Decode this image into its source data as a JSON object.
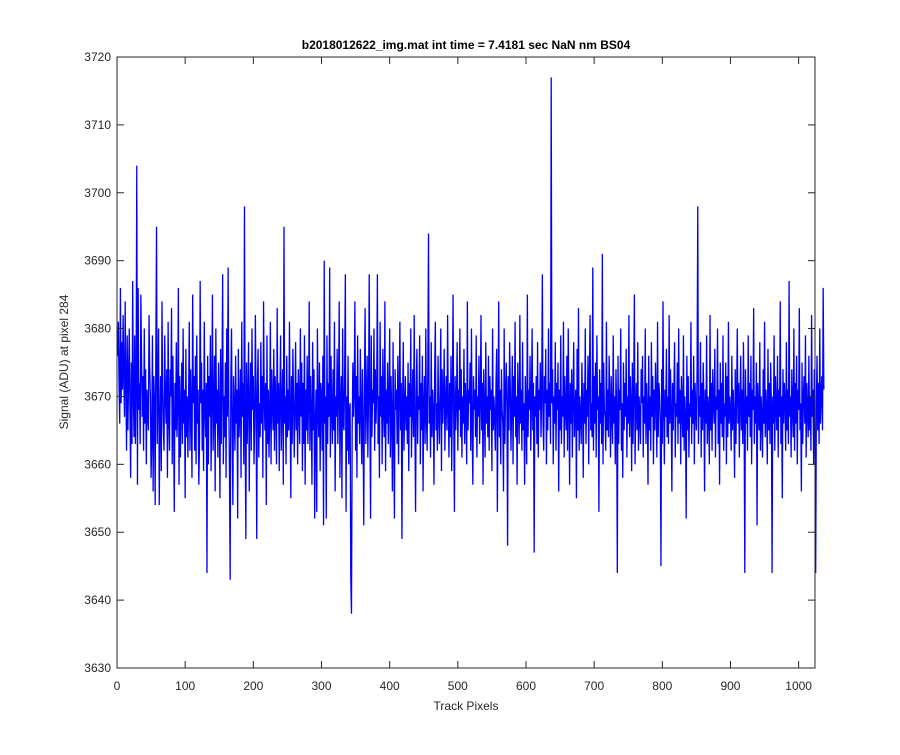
{
  "chart_data": {
    "type": "line",
    "title": "b2018012622_img.mat int time = 7.4181 sec  NaN nm BS04",
    "xlabel": "Track Pixels",
    "ylabel": "Signal (ADU) at pixel 284",
    "xlim": [
      0,
      1024
    ],
    "ylim": [
      3630,
      3720
    ],
    "x_ticks": [
      0,
      100,
      200,
      300,
      400,
      500,
      600,
      700,
      800,
      900,
      1000
    ],
    "y_ticks": [
      3630,
      3640,
      3650,
      3660,
      3670,
      3680,
      3690,
      3700,
      3710,
      3720
    ],
    "grid": false,
    "legend": "none",
    "series": [
      {
        "color": "#0000ff",
        "x_start": 1,
        "x_step": 1,
        "notable_points": [
          {
            "x": 28,
            "y": 3704
          },
          {
            "x": 58,
            "y": 3695
          },
          {
            "x": 132,
            "y": 3644
          },
          {
            "x": 166,
            "y": 3643
          },
          {
            "x": 187,
            "y": 3698
          },
          {
            "x": 247,
            "y": 3695
          },
          {
            "x": 345,
            "y": 3638
          },
          {
            "x": 490,
            "y": 3694
          },
          {
            "x": 603,
            "y": 3717
          },
          {
            "x": 699,
            "y": 3644
          },
          {
            "x": 773,
            "y": 3645
          },
          {
            "x": 838,
            "y": 3698
          },
          {
            "x": 899,
            "y": 3644
          },
          {
            "x": 1011,
            "y": 3644
          }
        ],
        "values": [
          3676,
          3681,
          3672,
          3666,
          3686,
          3669,
          3678,
          3671,
          3682,
          3673,
          3667,
          3684,
          3672,
          3662,
          3679,
          3665,
          3673,
          3680,
          3668,
          3658,
          3675,
          3663,
          3687,
          3670,
          3664,
          3679,
          3663,
          3671,
          3704,
          3657,
          3686,
          3668,
          3672,
          3663,
          3685,
          3676,
          3667,
          3673,
          3662,
          3680,
          3666,
          3674,
          3660,
          3671,
          3668,
          3665,
          3682,
          3674,
          3670,
          3658,
          3664,
          3679,
          3656,
          3673,
          3669,
          3654,
          3677,
          3695,
          3663,
          3671,
          3680,
          3654,
          3666,
          3673,
          3659,
          3684,
          3671,
          3665,
          3662,
          3679,
          3670,
          3666,
          3674,
          3658,
          3681,
          3667,
          3662,
          3674,
          3670,
          3683,
          3660,
          3676,
          3667,
          3653,
          3672,
          3665,
          3678,
          3664,
          3669,
          3686,
          3657,
          3673,
          3661,
          3668,
          3675,
          3663,
          3680,
          3666,
          3671,
          3655,
          3677,
          3664,
          3670,
          3661,
          3669,
          3681,
          3662,
          3674,
          3667,
          3658,
          3685,
          3669,
          3673,
          3662,
          3676,
          3660,
          3679,
          3666,
          3671,
          3657,
          3663,
          3687,
          3669,
          3675,
          3662,
          3671,
          3659,
          3681,
          3668,
          3664,
          3672,
          3644,
          3676,
          3660,
          3673,
          3667,
          3679,
          3659,
          3670,
          3685,
          3662,
          3668,
          3676,
          3656,
          3680,
          3666,
          3671,
          3661,
          3675,
          3668,
          3655,
          3677,
          3663,
          3672,
          3688,
          3660,
          3670,
          3664,
          3675,
          3658,
          3680,
          3667,
          3689,
          3669,
          3659,
          3643,
          3672,
          3680,
          3665,
          3654,
          3673,
          3668,
          3662,
          3676,
          3666,
          3671,
          3652,
          3677,
          3664,
          3668,
          3674,
          3658,
          3681,
          3667,
          3672,
          3660,
          3698,
          3665,
          3649,
          3675,
          3663,
          3670,
          3678,
          3656,
          3669,
          3675,
          3662,
          3680,
          3668,
          3673,
          3660,
          3666,
          3682,
          3670,
          3649,
          3672,
          3677,
          3661,
          3669,
          3664,
          3678,
          3666,
          3673,
          3658,
          3684,
          3670,
          3665,
          3672,
          3654,
          3679,
          3663,
          3671,
          3661,
          3667,
          3681,
          3660,
          3674,
          3669,
          3665,
          3677,
          3662,
          3673,
          3668,
          3660,
          3683,
          3666,
          3672,
          3659,
          3670,
          3679,
          3662,
          3669,
          3674,
          3657,
          3695,
          3666,
          3670,
          3660,
          3676,
          3664,
          3671,
          3665,
          3681,
          3668,
          3655,
          3673,
          3663,
          3677,
          3670,
          3661,
          3668,
          3678,
          3665,
          3672,
          3660,
          3674,
          3669,
          3663,
          3680,
          3667,
          3675,
          3659,
          3672,
          3663,
          3679,
          3657,
          3671,
          3665,
          3676,
          3663,
          3669,
          3684,
          3662,
          3673,
          3667,
          3657,
          3678,
          3665,
          3674,
          3652,
          3666,
          3671,
          3653,
          3680,
          3668,
          3664,
          3675,
          3659,
          3672,
          3670,
          3662,
          3676,
          3651,
          3690,
          3666,
          3670,
          3652,
          3679,
          3663,
          3672,
          3667,
          3689,
          3661,
          3676,
          3668,
          3663,
          3674,
          3665,
          3681,
          3656,
          3670,
          3667,
          3677,
          3663,
          3671,
          3684,
          3658,
          3669,
          3673,
          3655,
          3680,
          3666,
          3665,
          3674,
          3688,
          3653,
          3670,
          3662,
          3676,
          3660,
          3668,
          3669,
          3643,
          3638,
          3665,
          3675,
          3667,
          3671,
          3684,
          3662,
          3673,
          3658,
          3679,
          3666,
          3670,
          3663,
          3677,
          3668,
          3660,
          3674,
          3665,
          3651,
          3672,
          3683,
          3663,
          3669,
          3676,
          3661,
          3670,
          3688,
          3667,
          3652,
          3679,
          3664,
          3671,
          3669,
          3680,
          3662,
          3674,
          3666,
          3671,
          3688,
          3663,
          3670,
          3658,
          3681,
          3667,
          3673,
          3660,
          3677,
          3668,
          3664,
          3684,
          3659,
          3671,
          3666,
          3675,
          3663,
          3669,
          3680,
          3661,
          3673,
          3667,
          3656,
          3678,
          3664,
          3652,
          3674,
          3668,
          3671,
          3663,
          3676,
          3660,
          3670,
          3681,
          3665,
          3672,
          3649,
          3669,
          3678,
          3662,
          3668,
          3673,
          3665,
          3670,
          3663,
          3675,
          3659,
          3672,
          3667,
          3680,
          3661,
          3669,
          3674,
          3664,
          3682,
          3666,
          3653,
          3671,
          3677,
          3663,
          3670,
          3668,
          3679,
          3660,
          3672,
          3665,
          3676,
          3656,
          3669,
          3673,
          3663,
          3680,
          3667,
          3662,
          3675,
          3694,
          3666,
          3670,
          3661,
          3678,
          3664,
          3671,
          3668,
          3657,
          3673,
          3681,
          3665,
          3669,
          3662,
          3676,
          3667,
          3663,
          3671,
          3680,
          3659,
          3674,
          3666,
          3670,
          3677,
          3662,
          3669,
          3673,
          3665,
          3682,
          3668,
          3661,
          3672,
          3664,
          3676,
          3659,
          3670,
          3685,
          3667,
          3653,
          3673,
          3665,
          3669,
          3678,
          3662,
          3671,
          3668,
          3680,
          3664,
          3674,
          3661,
          3670,
          3666,
          3677,
          3663,
          3672,
          3668,
          3660,
          3684,
          3665,
          3671,
          3669,
          3675,
          3662,
          3680,
          3666,
          3657,
          3673,
          3668,
          3671,
          3664,
          3679,
          3661,
          3670,
          3667,
          3676,
          3663,
          3669,
          3682,
          3665,
          3672,
          3657,
          3674,
          3668,
          3661,
          3678,
          3666,
          3670,
          3664,
          3676,
          3662,
          3673,
          3668,
          3671,
          3659,
          3680,
          3665,
          3670,
          3667,
          3662,
          3672,
          3677,
          3653,
          3669,
          3684,
          3664,
          3671,
          3660,
          3674,
          3668,
          3666,
          3656,
          3680,
          3663,
          3670,
          3675,
          3669,
          3648,
          3673,
          3665,
          3678,
          3671,
          3662,
          3669,
          3676,
          3660,
          3673,
          3667,
          3681,
          3664,
          3670,
          3657,
          3675,
          3668,
          3663,
          3682,
          3666,
          3671,
          3662,
          3678,
          3665,
          3669,
          3657,
          3673,
          3667,
          3660,
          3685,
          3664,
          3671,
          3668,
          3676,
          3662,
          3669,
          3680,
          3665,
          3672,
          3647,
          3670,
          3667,
          3673,
          3663,
          3678,
          3661,
          3671,
          3668,
          3675,
          3664,
          3670,
          3688,
          3666,
          3662,
          3673,
          3669,
          3677,
          3660,
          3671,
          3665,
          3680,
          3667,
          3672,
          3663,
          3717,
          3669,
          3674,
          3660,
          3670,
          3666,
          3678,
          3662,
          3672,
          3668,
          3675,
          3656,
          3671,
          3665,
          3679,
          3663,
          3670,
          3667,
          3681,
          3661,
          3673,
          3668,
          3665,
          3676,
          3662,
          3680,
          3669,
          3657,
          3672,
          3666,
          3674,
          3661,
          3670,
          3678,
          3664,
          3668,
          3671,
          3655,
          3677,
          3665,
          3683,
          3662,
          3670,
          3667,
          3663,
          3675,
          3669,
          3658,
          3672,
          3666,
          3680,
          3663,
          3671,
          3667,
          3676,
          3660,
          3673,
          3682,
          3665,
          3669,
          3664,
          3689,
          3662,
          3673,
          3666,
          3675,
          3661,
          3679,
          3668,
          3670,
          3653,
          3674,
          3666,
          3672,
          3663,
          3691,
          3660,
          3675,
          3668,
          3667,
          3662,
          3681,
          3665,
          3671,
          3664,
          3676,
          3669,
          3661,
          3673,
          3667,
          3663,
          3679,
          3666,
          3670,
          3660,
          3674,
          3668,
          3644,
          3676,
          3663,
          3671,
          3668,
          3680,
          3662,
          3669,
          3658,
          3675,
          3665,
          3672,
          3667,
          3677,
          3661,
          3670,
          3666,
          3682,
          3664,
          3673,
          3669,
          3659,
          3675,
          3663,
          3671,
          3685,
          3660,
          3668,
          3672,
          3665,
          3678,
          3662,
          3670,
          3667,
          3663,
          3674,
          3669,
          3676,
          3661,
          3670,
          3666,
          3680,
          3663,
          3672,
          3668,
          3657,
          3676,
          3665,
          3670,
          3662,
          3678,
          3667,
          3673,
          3660,
          3671,
          3665,
          3675,
          3669,
          3661,
          3681,
          3664,
          3672,
          3670,
          3666,
          3645,
          3674,
          3663,
          3684,
          3668,
          3660,
          3671,
          3667,
          3677,
          3664,
          3670,
          3663,
          3682,
          3666,
          3674,
          3668,
          3656,
          3672,
          3665,
          3671,
          3678,
          3661,
          3669,
          3667,
          3675,
          3663,
          3680,
          3666,
          3671,
          3660,
          3673,
          3668,
          3664,
          3679,
          3662,
          3670,
          3667,
          3652,
          3676,
          3665,
          3673,
          3661,
          3669,
          3667,
          3681,
          3663,
          3671,
          3666,
          3676,
          3660,
          3672,
          3668,
          3665,
          3674,
          3698,
          3663,
          3670,
          3667,
          3678,
          3661,
          3672,
          3665,
          3675,
          3669,
          3656,
          3671,
          3666,
          3679,
          3663,
          3670,
          3668,
          3660,
          3682,
          3665,
          3672,
          3662,
          3674,
          3669,
          3666,
          3677,
          3661,
          3670,
          3668,
          3680,
          3663,
          3671,
          3657,
          3675,
          3666,
          3672,
          3664,
          3679,
          3662,
          3669,
          3667,
          3675,
          3660,
          3673,
          3664,
          3681,
          3666,
          3670,
          3668,
          3662,
          3676,
          3665,
          3671,
          3667,
          3658,
          3674,
          3663,
          3670,
          3680,
          3666,
          3672,
          3661,
          3669,
          3676,
          3665,
          3671,
          3663,
          3678,
          3668,
          3644,
          3674,
          3666,
          3670,
          3662,
          3679,
          3667,
          3672,
          3664,
          3676,
          3660,
          3671,
          3668,
          3683,
          3663,
          3670,
          3666,
          3675,
          3651,
          3672,
          3668,
          3665,
          3678,
          3662,
          3670,
          3667,
          3661,
          3674,
          3666,
          3681,
          3664,
          3671,
          3668,
          3660,
          3677,
          3665,
          3672,
          3663,
          3675,
          3669,
          3644,
          3670,
          3666,
          3679,
          3662,
          3673,
          3668,
          3665,
          3676,
          3661,
          3671,
          3667,
          3684,
          3663,
          3670,
          3655,
          3674,
          3666,
          3672,
          3669,
          3662,
          3678,
          3665,
          3671,
          3663,
          3687,
          3667,
          3670,
          3661,
          3674,
          3668,
          3664,
          3680,
          3662,
          3672,
          3666,
          3676,
          3660,
          3671,
          3668,
          3683,
          3665,
          3669,
          3656,
          3675,
          3663,
          3670,
          3673,
          3666,
          3679,
          3661,
          3672,
          3668,
          3664,
          3676,
          3665,
          3670,
          3662,
          3682,
          3667,
          3671,
          3660,
          3674,
          3664,
          3644,
          3669,
          3676,
          3665,
          3672,
          3663,
          3680,
          3666,
          3670,
          3673,
          3665,
          3686,
          3671
        ]
      }
    ]
  }
}
